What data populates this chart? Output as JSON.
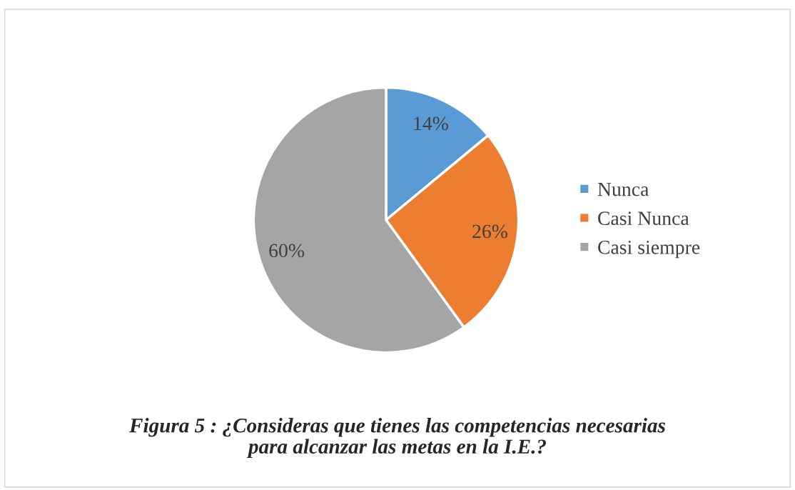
{
  "chart_data": {
    "type": "pie",
    "title": "Figura 5 : ¿Consideras que tienes las competencias necesarias\npara alcanzar las metas en la I.E.?",
    "categories": [
      "Nunca",
      "Casi Nunca",
      "Casi siempre"
    ],
    "values": [
      14,
      26,
      60
    ],
    "colors": [
      "#5b9bd5",
      "#ed7d31",
      "#a5a5a5"
    ],
    "value_labels": [
      "14%",
      "26%",
      "60%"
    ],
    "legend": "right"
  }
}
